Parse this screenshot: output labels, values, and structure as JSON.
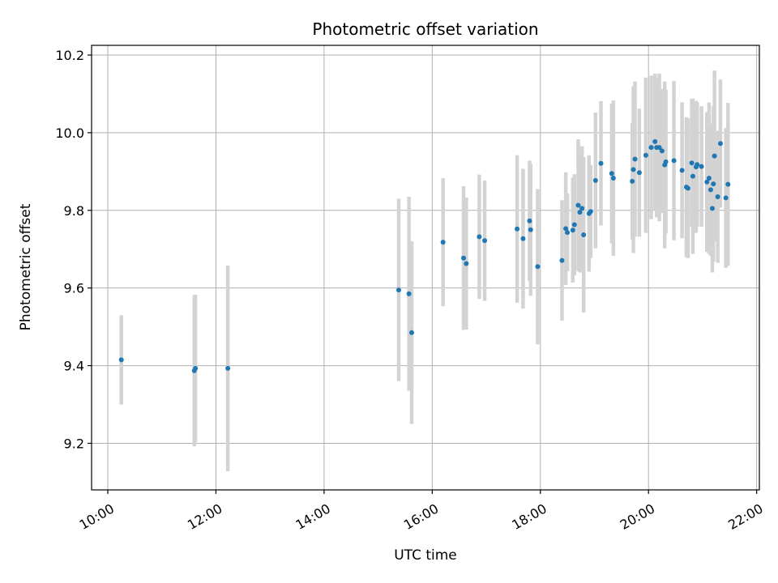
{
  "chart_data": {
    "type": "scatter",
    "title": "Photometric offset variation",
    "xlabel": "UTC time",
    "ylabel": "Photometric offset",
    "xlim": [
      9.7,
      22.05
    ],
    "ylim": [
      9.08,
      10.225
    ],
    "grid": true,
    "xticks": [
      {
        "value": 10,
        "label": "10:00"
      },
      {
        "value": 12,
        "label": "12:00"
      },
      {
        "value": 14,
        "label": "14:00"
      },
      {
        "value": 16,
        "label": "16:00"
      },
      {
        "value": 18,
        "label": "18:00"
      },
      {
        "value": 20,
        "label": "20:00"
      },
      {
        "value": 22,
        "label": "22:00"
      }
    ],
    "yticks": [
      {
        "value": 9.2,
        "label": "9.2"
      },
      {
        "value": 9.4,
        "label": "9.4"
      },
      {
        "value": 9.6,
        "label": "9.6"
      },
      {
        "value": 9.8,
        "label": "9.8"
      },
      {
        "value": 10.0,
        "label": "10.0"
      },
      {
        "value": 10.2,
        "label": "10.2"
      }
    ],
    "colors": {
      "point": "#1f77b4",
      "errorbar": "#d3d3d3",
      "grid": "#b0b0b0"
    },
    "series": [
      {
        "name": "offset",
        "x": [
          10.25,
          11.6,
          11.62,
          12.22,
          15.38,
          15.57,
          15.62,
          16.2,
          16.58,
          16.63,
          16.87,
          16.97,
          17.57,
          17.68,
          17.8,
          17.82,
          17.95,
          18.4,
          18.47,
          18.5,
          18.6,
          18.63,
          18.7,
          18.73,
          18.77,
          18.8,
          18.9,
          18.93,
          19.02,
          19.12,
          19.32,
          19.35,
          19.7,
          19.72,
          19.75,
          19.83,
          19.95,
          20.05,
          20.12,
          20.15,
          20.2,
          20.25,
          20.3,
          20.32,
          20.47,
          20.62,
          20.7,
          20.73,
          20.8,
          20.82,
          20.88,
          20.9,
          20.98,
          21.08,
          21.12,
          21.15,
          21.18,
          21.2,
          21.22,
          21.28,
          21.33,
          21.43,
          21.47
        ],
        "y": [
          9.415,
          9.387,
          9.393,
          9.393,
          9.595,
          9.585,
          9.485,
          9.718,
          9.677,
          9.663,
          9.732,
          9.722,
          9.752,
          9.727,
          9.773,
          9.75,
          9.655,
          9.671,
          9.753,
          9.743,
          9.749,
          9.763,
          9.813,
          9.795,
          9.805,
          9.737,
          9.792,
          9.797,
          9.877,
          9.921,
          9.895,
          9.883,
          9.875,
          9.905,
          9.932,
          9.897,
          9.942,
          9.962,
          9.977,
          9.962,
          9.962,
          9.953,
          9.917,
          9.925,
          9.928,
          9.903,
          9.86,
          9.857,
          9.922,
          9.888,
          9.912,
          9.918,
          9.913,
          9.873,
          9.883,
          9.853,
          9.805,
          9.868,
          9.94,
          9.835,
          9.972,
          9.832,
          9.867
        ],
        "yerr": [
          0.115,
          0.195,
          0.19,
          0.265,
          0.235,
          0.25,
          0.235,
          0.165,
          0.185,
          0.17,
          0.16,
          0.155,
          0.19,
          0.18,
          0.155,
          0.17,
          0.2,
          0.155,
          0.145,
          0.1,
          0.135,
          0.13,
          0.17,
          0.155,
          0.16,
          0.2,
          0.15,
          0.12,
          0.175,
          0.16,
          0.18,
          0.2,
          0.15,
          0.215,
          0.2,
          0.165,
          0.2,
          0.185,
          0.175,
          0.18,
          0.19,
          0.16,
          0.215,
          0.185,
          0.205,
          0.175,
          0.18,
          0.18,
          0.165,
          0.2,
          0.17,
          0.16,
          0.155,
          0.18,
          0.195,
          0.17,
          0.165,
          0.2,
          0.22,
          0.17,
          0.165,
          0.18,
          0.21
        ]
      }
    ]
  }
}
